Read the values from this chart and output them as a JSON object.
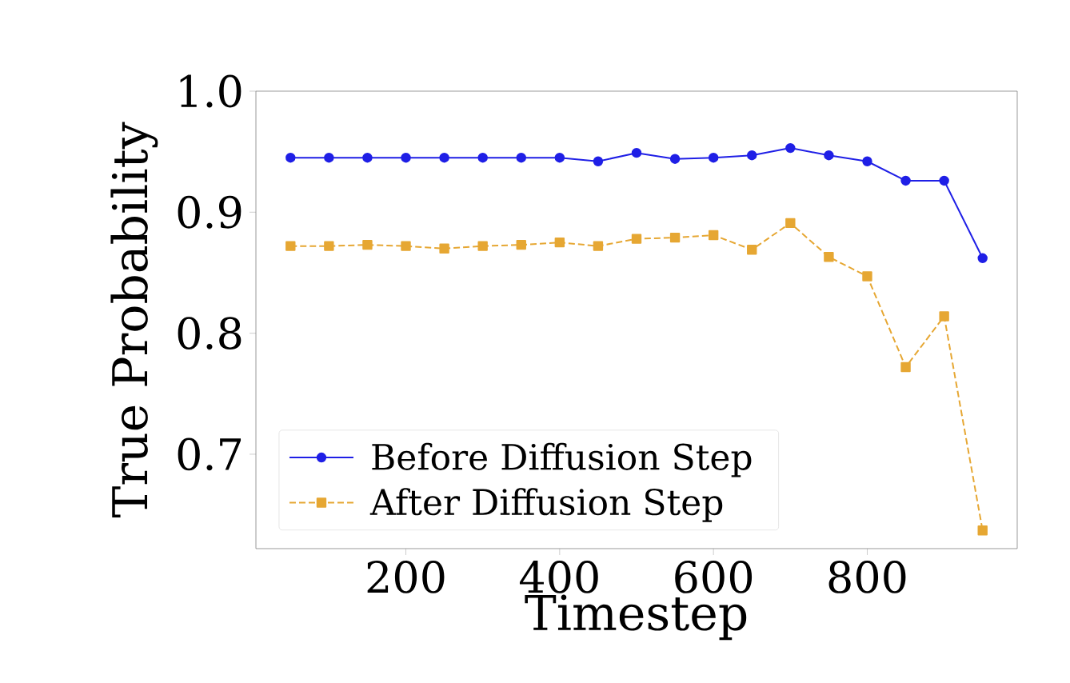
{
  "chart_data": {
    "type": "line",
    "xlabel": "Timestep",
    "ylabel": "True Probability",
    "x": [
      50,
      100,
      150,
      200,
      250,
      300,
      350,
      400,
      450,
      500,
      550,
      600,
      650,
      700,
      750,
      800,
      850,
      900,
      950
    ],
    "xlim": [
      5,
      995
    ],
    "xticks": [
      200,
      400,
      600,
      800
    ],
    "ylim": [
      0.622,
      1.0
    ],
    "yticks": [
      0.7,
      0.8,
      0.9,
      {
        "value": 1.0,
        "label": "1.0"
      }
    ],
    "legend": "bottom left",
    "series": [
      {
        "name": "Before Diffusion Step",
        "color": "#1f1fe6",
        "marker": "circle",
        "line_style": "solid",
        "values": [
          0.945,
          0.945,
          0.945,
          0.945,
          0.945,
          0.945,
          0.945,
          0.945,
          0.942,
          0.949,
          0.944,
          0.945,
          0.947,
          0.953,
          0.947,
          0.942,
          0.926,
          0.926,
          0.862
        ]
      },
      {
        "name": "After Diffusion Step",
        "color": "#e6a733",
        "marker": "square",
        "line_style": "dashed",
        "values": [
          0.872,
          0.872,
          0.873,
          0.872,
          0.87,
          0.872,
          0.873,
          0.875,
          0.872,
          0.878,
          0.879,
          0.881,
          0.869,
          0.891,
          0.863,
          0.847,
          0.772,
          0.814,
          0.637
        ]
      }
    ]
  }
}
